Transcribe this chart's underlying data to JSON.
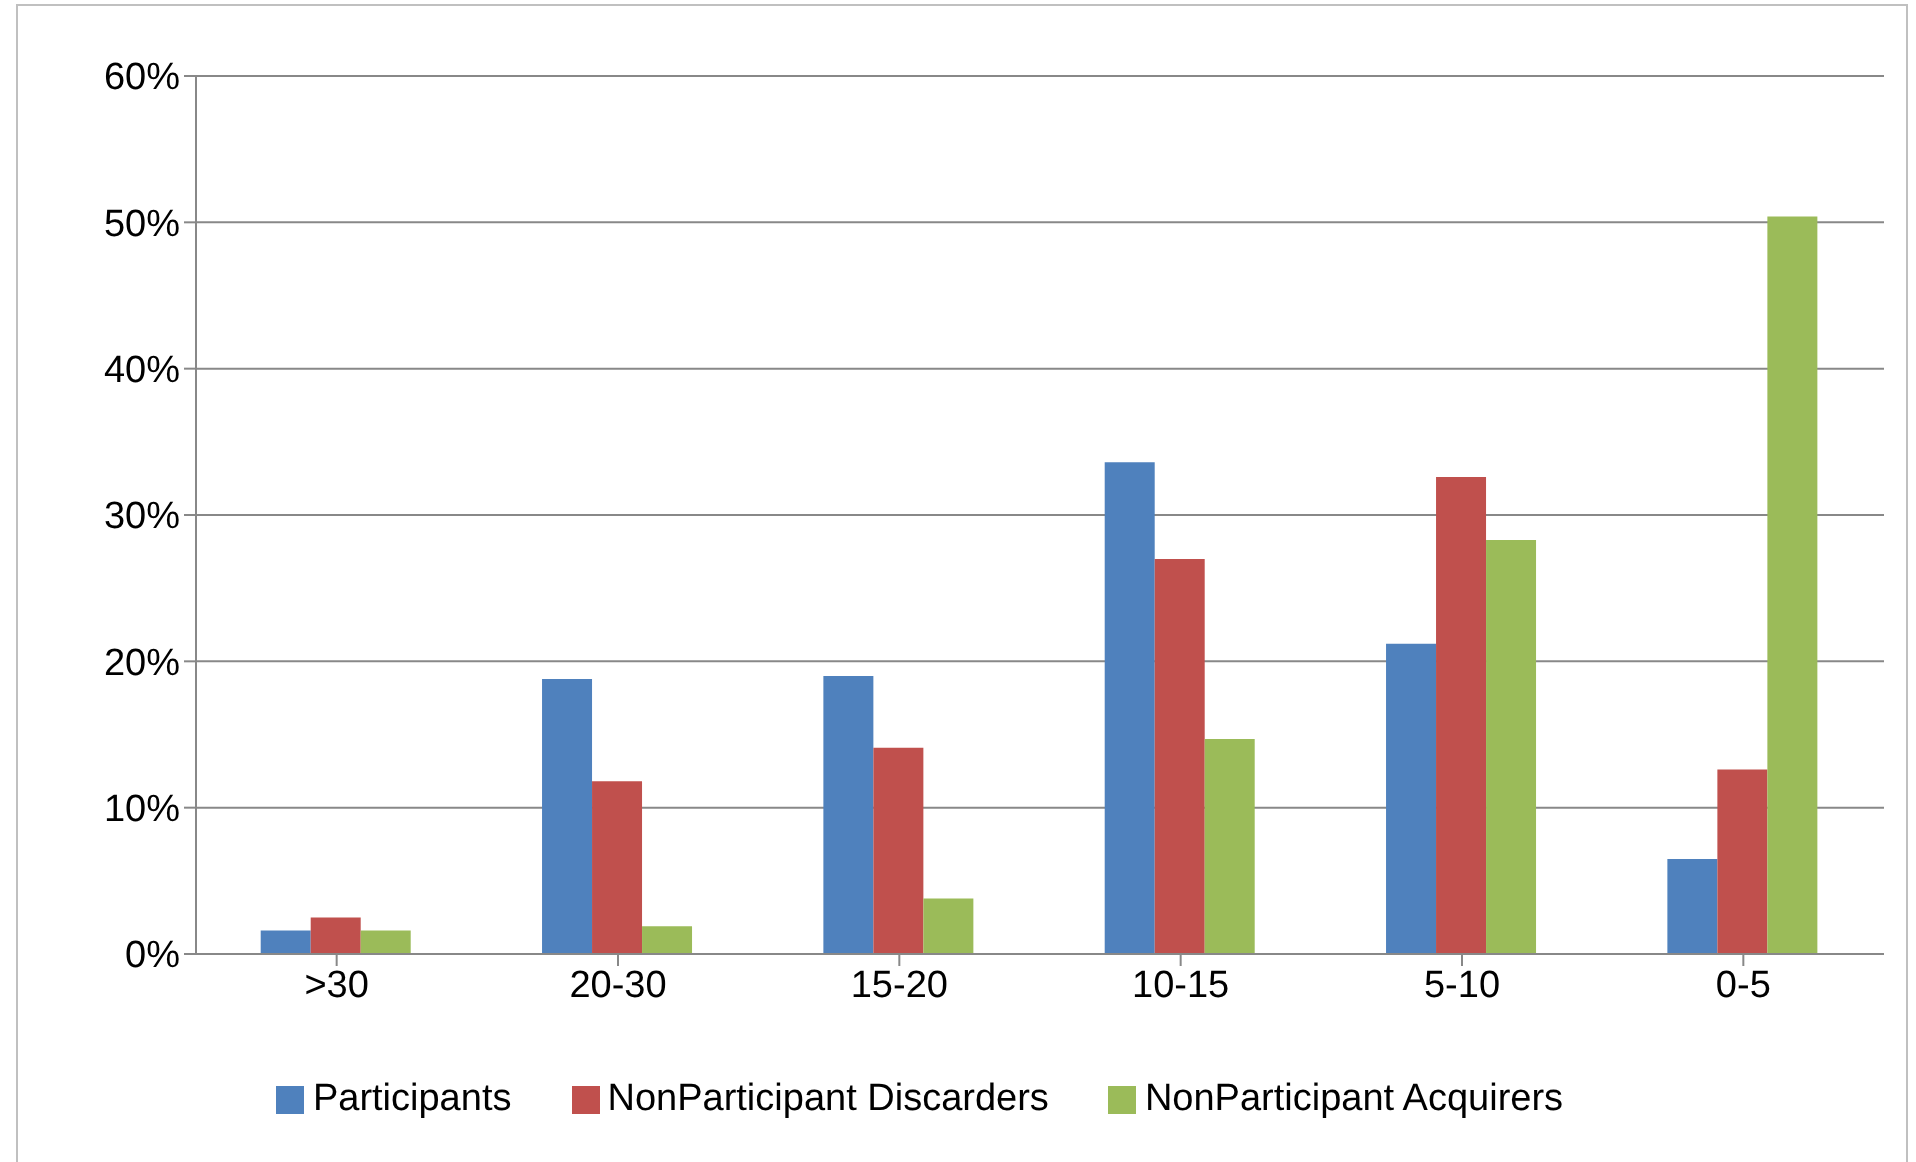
{
  "chart_data": {
    "type": "bar",
    "categories": [
      ">30",
      "20-30",
      "15-20",
      "10-15",
      "5-10",
      "0-5"
    ],
    "series": [
      {
        "name": "Participants",
        "color": "#4f81bd",
        "values": [
          1.6,
          18.8,
          19.0,
          33.6,
          21.2,
          6.5
        ]
      },
      {
        "name": "NonParticipant Discarders",
        "color": "#c0504d",
        "values": [
          2.5,
          11.8,
          14.1,
          27.0,
          32.6,
          12.6
        ]
      },
      {
        "name": "NonParticipant Acquirers",
        "color": "#9bbb59",
        "values": [
          1.6,
          1.9,
          3.8,
          14.7,
          28.3,
          50.4
        ]
      }
    ],
    "ylim": [
      0,
      60
    ],
    "yticks": [
      {
        "value": 0,
        "label": "0%"
      },
      {
        "value": 10,
        "label": "10%"
      },
      {
        "value": 20,
        "label": "20%"
      },
      {
        "value": 30,
        "label": "30%"
      },
      {
        "value": 40,
        "label": "40%"
      },
      {
        "value": 50,
        "label": "50%"
      },
      {
        "value": 60,
        "label": "60%"
      }
    ],
    "grid": "y",
    "legend": "bottom"
  }
}
